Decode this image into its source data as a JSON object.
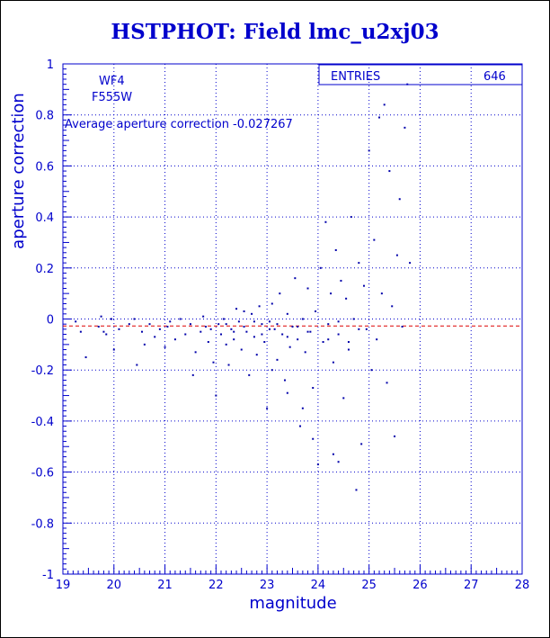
{
  "chart_data": {
    "type": "scatter",
    "title": "HSTPHOT: Field lmc_u2xj03",
    "xlabel": "magnitude",
    "ylabel": "aperture correction",
    "xlim": [
      19,
      28
    ],
    "ylim": [
      -1,
      1
    ],
    "xticks": [
      "19",
      "20",
      "21",
      "22",
      "23",
      "24",
      "25",
      "26",
      "27",
      "28"
    ],
    "yticks": [
      "-1",
      "-0.8",
      "-0.6",
      "-0.4",
      "-0.2",
      "0",
      "0.2",
      "0.4",
      "0.6",
      "0.8",
      "1"
    ],
    "grid": true,
    "stats_box": {
      "label": "ENTRIES",
      "value": "646"
    },
    "annotations": {
      "chip": "WF4",
      "filter": "F555W",
      "average": "Average aperture correction -0.027267"
    },
    "reference_line": {
      "y": -0.027267,
      "color": "#dd0000"
    },
    "colors": {
      "text": "#0000cc",
      "axes": "#0000cc",
      "points": "#0000aa",
      "grid": "#0000cc"
    },
    "points": [
      [
        19.25,
        -0.01
      ],
      [
        19.35,
        -0.05
      ],
      [
        19.45,
        -0.15
      ],
      [
        19.7,
        -0.03
      ],
      [
        19.75,
        0.01
      ],
      [
        19.8,
        -0.05
      ],
      [
        19.85,
        -0.06
      ],
      [
        19.95,
        0.0
      ],
      [
        20.0,
        -0.12
      ],
      [
        20.1,
        -0.04
      ],
      [
        20.3,
        -0.02
      ],
      [
        20.4,
        0.0
      ],
      [
        20.45,
        -0.18
      ],
      [
        20.55,
        -0.05
      ],
      [
        20.6,
        -0.1
      ],
      [
        20.7,
        -0.02
      ],
      [
        20.8,
        -0.07
      ],
      [
        20.9,
        -0.04
      ],
      [
        21.0,
        -0.11
      ],
      [
        21.05,
        -0.03
      ],
      [
        21.1,
        -0.01
      ],
      [
        21.2,
        -0.08
      ],
      [
        21.3,
        0.0
      ],
      [
        21.4,
        -0.06
      ],
      [
        21.5,
        -0.02
      ],
      [
        21.55,
        -0.22
      ],
      [
        21.6,
        -0.13
      ],
      [
        21.7,
        -0.05
      ],
      [
        21.75,
        0.01
      ],
      [
        21.8,
        -0.03
      ],
      [
        21.85,
        -0.09
      ],
      [
        21.9,
        -0.04
      ],
      [
        21.95,
        -0.17
      ],
      [
        22.0,
        -0.3
      ],
      [
        22.05,
        -0.02
      ],
      [
        22.1,
        -0.06
      ],
      [
        22.15,
        0.0
      ],
      [
        22.2,
        -0.1
      ],
      [
        22.25,
        -0.18
      ],
      [
        22.3,
        -0.04
      ],
      [
        22.35,
        -0.08
      ],
      [
        22.4,
        0.04
      ],
      [
        22.45,
        -0.01
      ],
      [
        22.5,
        -0.12
      ],
      [
        22.55,
        0.03
      ],
      [
        22.6,
        -0.05
      ],
      [
        22.65,
        -0.22
      ],
      [
        22.7,
        0.02
      ],
      [
        22.75,
        -0.07
      ],
      [
        22.8,
        -0.14
      ],
      [
        22.85,
        0.05
      ],
      [
        22.9,
        -0.02
      ],
      [
        22.95,
        -0.09
      ],
      [
        23.0,
        -0.35
      ],
      [
        23.05,
        -0.01
      ],
      [
        23.1,
        0.06
      ],
      [
        23.15,
        -0.04
      ],
      [
        23.2,
        -0.16
      ],
      [
        23.25,
        0.1
      ],
      [
        23.3,
        -0.06
      ],
      [
        23.35,
        -0.24
      ],
      [
        23.4,
        0.02
      ],
      [
        23.45,
        -0.11
      ],
      [
        23.5,
        -0.03
      ],
      [
        23.55,
        0.16
      ],
      [
        23.6,
        -0.08
      ],
      [
        23.65,
        -0.42
      ],
      [
        23.7,
        0.0
      ],
      [
        23.75,
        -0.13
      ],
      [
        23.8,
        0.12
      ],
      [
        23.85,
        -0.05
      ],
      [
        23.9,
        -0.27
      ],
      [
        23.95,
        0.03
      ],
      [
        24.0,
        -0.57
      ],
      [
        24.05,
        0.2
      ],
      [
        24.1,
        -0.09
      ],
      [
        24.15,
        0.38
      ],
      [
        24.2,
        -0.02
      ],
      [
        24.25,
        0.1
      ],
      [
        24.3,
        -0.17
      ],
      [
        24.35,
        0.27
      ],
      [
        24.4,
        -0.06
      ],
      [
        24.45,
        0.15
      ],
      [
        24.5,
        -0.31
      ],
      [
        24.55,
        0.08
      ],
      [
        24.6,
        -0.12
      ],
      [
        24.65,
        0.4
      ],
      [
        24.7,
        0.0
      ],
      [
        24.75,
        -0.67
      ],
      [
        24.8,
        0.22
      ],
      [
        24.85,
        -0.49
      ],
      [
        24.9,
        0.13
      ],
      [
        24.95,
        -0.04
      ],
      [
        25.0,
        0.66
      ],
      [
        25.05,
        -0.2
      ],
      [
        25.1,
        0.31
      ],
      [
        25.15,
        -0.08
      ],
      [
        25.2,
        0.79
      ],
      [
        25.25,
        0.1
      ],
      [
        25.3,
        0.84
      ],
      [
        25.35,
        -0.25
      ],
      [
        25.4,
        0.58
      ],
      [
        25.45,
        0.05
      ],
      [
        25.5,
        -0.46
      ],
      [
        25.55,
        0.25
      ],
      [
        25.6,
        0.47
      ],
      [
        25.65,
        -0.03
      ],
      [
        25.7,
        0.75
      ],
      [
        25.75,
        0.92
      ],
      [
        25.8,
        0.22
      ],
      [
        22.2,
        -0.02
      ],
      [
        22.35,
        -0.05
      ],
      [
        22.55,
        -0.03
      ],
      [
        22.75,
        -0.01
      ],
      [
        22.9,
        -0.06
      ],
      [
        23.05,
        -0.04
      ],
      [
        23.2,
        -0.02
      ],
      [
        23.4,
        -0.07
      ],
      [
        23.6,
        -0.03
      ],
      [
        23.8,
        -0.05
      ],
      [
        24.2,
        -0.08
      ],
      [
        24.4,
        -0.01
      ],
      [
        24.6,
        -0.09
      ],
      [
        24.8,
        -0.04
      ],
      [
        23.1,
        -0.2
      ],
      [
        23.4,
        -0.29
      ],
      [
        23.7,
        -0.35
      ],
      [
        23.9,
        -0.47
      ],
      [
        24.3,
        -0.53
      ],
      [
        24.4,
        -0.56
      ]
    ]
  }
}
